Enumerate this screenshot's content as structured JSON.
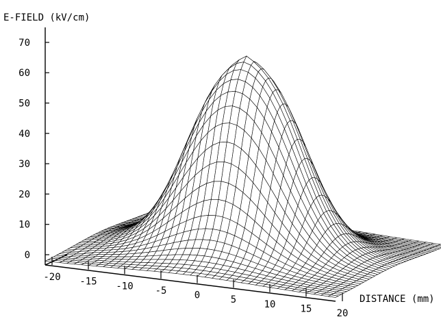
{
  "chart_data": {
    "type": "surface",
    "ylabel": "E-FIELD (kV/cm)",
    "xlabel": "DISTANCE (mm)",
    "z_ticks": [
      "0",
      "10",
      "20",
      "30",
      "40",
      "50",
      "60",
      "70"
    ],
    "z_range": [
      0,
      70
    ],
    "x_ticks": [
      "-20",
      "-15",
      "-10",
      "-5",
      "0",
      "5",
      "10",
      "15",
      "20"
    ],
    "x_range": [
      -20,
      20
    ],
    "y_range": [
      -20,
      20
    ],
    "surface": {
      "peak_value": 70,
      "plateau_radius": 3.5,
      "falloff_width": 5.0,
      "edge_value": 5,
      "grid_step": 1
    },
    "grid": false,
    "legend": "none"
  }
}
